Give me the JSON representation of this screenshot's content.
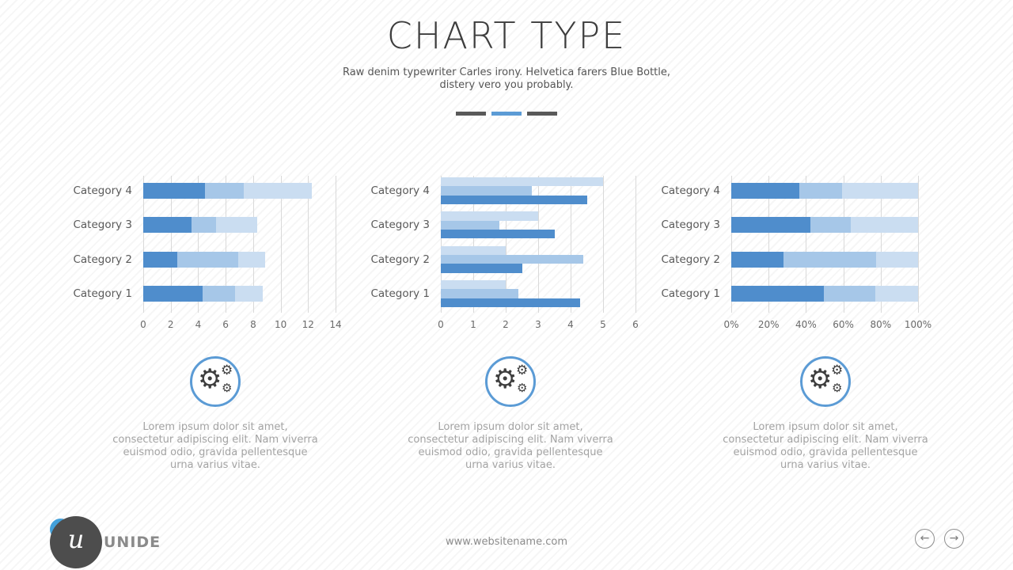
{
  "slide": {
    "title": "CHART TYPE",
    "subtitle_line1": "Raw denim typewriter Carles irony. Helvetica farers Blue Bottle,",
    "subtitle_line2": "distery vero you probably.",
    "pagination": {
      "dashes": [
        "#595959",
        "#5b9bd5",
        "#595959"
      ],
      "active_color": "#5b9bd5",
      "inactive_color": "#595959"
    }
  },
  "chart_data": [
    {
      "type": "bar",
      "variant": "stacked",
      "orientation": "horizontal",
      "categories": [
        "Category 1",
        "Category 2",
        "Category 3",
        "Category 4"
      ],
      "row_order_top_to_bottom": [
        "Category 4",
        "Category 3",
        "Category 2",
        "Category 1"
      ],
      "series": [
        {
          "id": "series-1",
          "color": "#4f8dcc",
          "values": [
            4.3,
            2.5,
            3.5,
            4.5
          ]
        },
        {
          "id": "series-2",
          "color": "#a6c7e8",
          "values": [
            2.4,
            4.4,
            1.8,
            2.8
          ]
        },
        {
          "id": "series-3",
          "color": "#caddf1",
          "values": [
            2.0,
            2.0,
            3.0,
            5.0
          ]
        }
      ],
      "xlim": [
        0,
        14
      ],
      "xtick_values": [
        0,
        2,
        4,
        6,
        8,
        10,
        12,
        14
      ],
      "xtick_labels": [
        "0",
        "2",
        "4",
        "6",
        "8",
        "10",
        "12",
        "14"
      ],
      "grid": "vertical",
      "legend": "none"
    },
    {
      "type": "bar",
      "variant": "grouped",
      "orientation": "horizontal",
      "categories": [
        "Category 1",
        "Category 2",
        "Category 3",
        "Category 4"
      ],
      "row_order_top_to_bottom": [
        "Category 4",
        "Category 3",
        "Category 2",
        "Category 1"
      ],
      "series": [
        {
          "id": "series-1",
          "color": "#4f8dcc",
          "values": [
            4.3,
            2.5,
            3.5,
            4.5
          ]
        },
        {
          "id": "series-2",
          "color": "#a6c7e8",
          "values": [
            2.4,
            4.4,
            1.8,
            2.8
          ]
        },
        {
          "id": "series-3",
          "color": "#caddf1",
          "values": [
            2.0,
            2.0,
            3.0,
            5.0
          ]
        }
      ],
      "xlim": [
        0,
        6
      ],
      "xtick_values": [
        0,
        1,
        2,
        3,
        4,
        5,
        6
      ],
      "xtick_labels": [
        "0",
        "1",
        "2",
        "3",
        "4",
        "5",
        "6"
      ],
      "grid": "vertical",
      "legend": "none"
    },
    {
      "type": "bar",
      "variant": "percent_stacked",
      "orientation": "horizontal",
      "categories": [
        "Category 1",
        "Category 2",
        "Category 3",
        "Category 4"
      ],
      "row_order_top_to_bottom": [
        "Category 4",
        "Category 3",
        "Category 2",
        "Category 1"
      ],
      "series": [
        {
          "id": "series-1",
          "color": "#4f8dcc",
          "values": [
            4.3,
            2.5,
            3.5,
            4.5
          ]
        },
        {
          "id": "series-2",
          "color": "#a6c7e8",
          "values": [
            2.4,
            4.4,
            1.8,
            2.8
          ]
        },
        {
          "id": "series-3",
          "color": "#caddf1",
          "values": [
            2.0,
            2.0,
            3.0,
            5.0
          ]
        }
      ],
      "percent_shares_top_to_bottom": {
        "Category 4": [
          37,
          23,
          40
        ],
        "Category 3": [
          42,
          22,
          36
        ],
        "Category 2": [
          28,
          49,
          23
        ],
        "Category 1": [
          49,
          28,
          23
        ]
      },
      "xlim": [
        0,
        100
      ],
      "xtick_values": [
        0,
        20,
        40,
        60,
        80,
        100
      ],
      "xtick_labels": [
        "0%",
        "20%",
        "40%",
        "60%",
        "80%",
        "100%"
      ],
      "grid": "vertical",
      "legend": "none"
    }
  ],
  "icons": {
    "gear": "⚙",
    "nav_prev": "←",
    "nav_next": "→"
  },
  "features": {
    "items": [
      {
        "icon": "gears-icon",
        "text": "Lorem ipsum dolor sit amet, consectetur adipiscing elit. Nam viverra euismod odio, gravida pellentesque urna varius vitae."
      },
      {
        "icon": "gears-icon",
        "text": "Lorem ipsum dolor sit amet, consectetur adipiscing elit. Nam viverra euismod odio, gravida pellentesque urna varius vitae."
      },
      {
        "icon": "gears-icon",
        "text": "Lorem ipsum dolor sit amet, consectetur adipiscing elit. Nam viverra euismod odio, gravida pellentesque urna varius vitae."
      }
    ]
  },
  "footer": {
    "logo_letter": "u",
    "brand": "UNIDE",
    "website": "www.websitename.com"
  }
}
